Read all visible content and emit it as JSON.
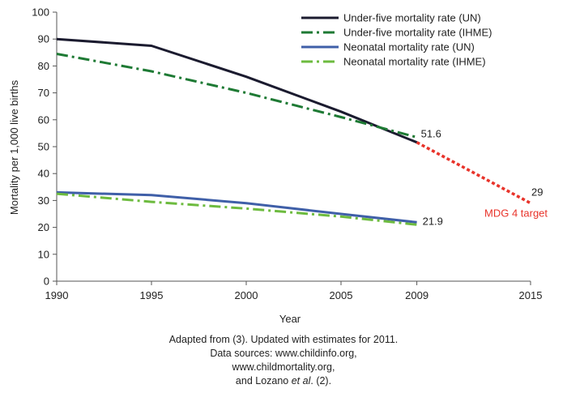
{
  "chart_data": {
    "type": "line",
    "xlabel": "Year",
    "ylabel": "Mortality per 1,000 live births",
    "xlim": [
      1990,
      2015
    ],
    "ylim": [
      0,
      100
    ],
    "x_ticks": [
      "1990",
      "1995",
      "2000",
      "2005",
      "2009",
      "2015"
    ],
    "y_ticks": [
      "0",
      "10",
      "20",
      "30",
      "40",
      "50",
      "60",
      "70",
      "80",
      "90",
      "100"
    ],
    "legend_position": "top-right",
    "grid": false,
    "series": [
      {
        "name": "Under-five mortality rate (UN)",
        "color": "#1b1b2f",
        "style": "solid",
        "x": [
          1990,
          1995,
          2000,
          2005,
          2009
        ],
        "values": [
          90,
          87.5,
          76,
          63,
          51.6
        ]
      },
      {
        "name": "Under-five mortality rate (IHME)",
        "color": "#1e7a34",
        "style": "dashdot",
        "x": [
          1990,
          1995,
          2000,
          2005,
          2009
        ],
        "values": [
          84.5,
          78,
          70,
          61,
          53.5
        ]
      },
      {
        "name": "Neonatal mortality rate (UN)",
        "color": "#3f5fa8",
        "style": "solid",
        "x": [
          1990,
          1995,
          2000,
          2005,
          2009
        ],
        "values": [
          33,
          32,
          29,
          25,
          21.9
        ]
      },
      {
        "name": "Neonatal mortality rate (IHME)",
        "color": "#6dbb3f",
        "style": "dashdot",
        "x": [
          1990,
          1995,
          2000,
          2005,
          2009
        ],
        "values": [
          32.5,
          29.5,
          27,
          24,
          21
        ]
      }
    ],
    "target": {
      "color": "#e8332a",
      "style": "dotted",
      "x": [
        2009,
        2015
      ],
      "values": [
        51.6,
        29
      ],
      "label": "MDG 4 target"
    },
    "annotations": [
      {
        "text": "51.6",
        "x": 2009,
        "y": 51.6
      },
      {
        "text": "21.9",
        "x": 2009,
        "y": 21.9
      },
      {
        "text": "29",
        "x": 2015,
        "y": 29
      }
    ]
  },
  "caption": {
    "line1": "Adapted from (3). Updated with estimates for 2011.",
    "line2": "Data sources: www.childinfo.org,",
    "line3": "www.childmortality.org,",
    "line4_prefix": "and Lozano ",
    "line4_italic": "et al",
    "line4_suffix": ". (2)."
  }
}
